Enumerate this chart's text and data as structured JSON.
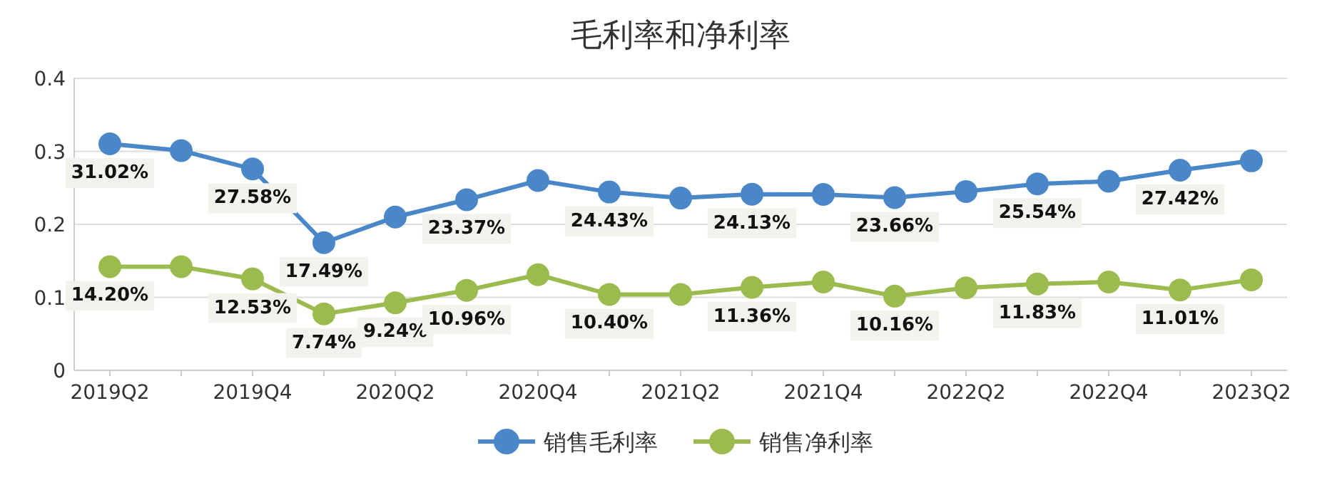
{
  "chart_data": {
    "type": "line",
    "title": "毛利率和净利率",
    "categories": [
      "2019Q2",
      null,
      "2019Q4",
      null,
      "2020Q2",
      null,
      "2020Q4",
      null,
      "2021Q2",
      null,
      "2021Q4",
      null,
      "2022Q2",
      null,
      "2022Q4",
      null,
      "2023Q2"
    ],
    "series": [
      {
        "name": "销售毛利率",
        "color": "#4a87c8",
        "values": [
          0.3102,
          0.301,
          0.2758,
          0.1749,
          0.21,
          0.2337,
          0.26,
          0.2443,
          0.236,
          0.2413,
          0.241,
          0.2366,
          0.245,
          0.2554,
          0.259,
          0.2742,
          0.287
        ],
        "value_labels": [
          "31.02%",
          null,
          "27.58%",
          "17.49%",
          null,
          "23.37%",
          null,
          "24.43%",
          null,
          "24.13%",
          null,
          "23.66%",
          null,
          "25.54%",
          null,
          "27.42%",
          null
        ]
      },
      {
        "name": "销售净利率",
        "color": "#9bbb4f",
        "values": [
          0.142,
          0.142,
          0.1253,
          0.0774,
          0.0924,
          0.1096,
          0.131,
          0.104,
          0.104,
          0.1136,
          0.121,
          0.1016,
          0.113,
          0.1183,
          0.121,
          0.1101,
          0.124
        ],
        "value_labels": [
          "14.20%",
          null,
          "12.53%",
          "7.74%",
          "9.24%",
          "10.96%",
          null,
          "10.40%",
          null,
          "11.36%",
          null,
          "10.16%",
          null,
          "11.83%",
          null,
          "11.01%",
          null
        ]
      }
    ],
    "ylim": [
      0,
      0.4
    ],
    "yticks": [
      0,
      0.1,
      0.2,
      0.3,
      0.4
    ],
    "grid": "y",
    "legend": "bottom",
    "marker": "circle",
    "line_style": "solid"
  }
}
